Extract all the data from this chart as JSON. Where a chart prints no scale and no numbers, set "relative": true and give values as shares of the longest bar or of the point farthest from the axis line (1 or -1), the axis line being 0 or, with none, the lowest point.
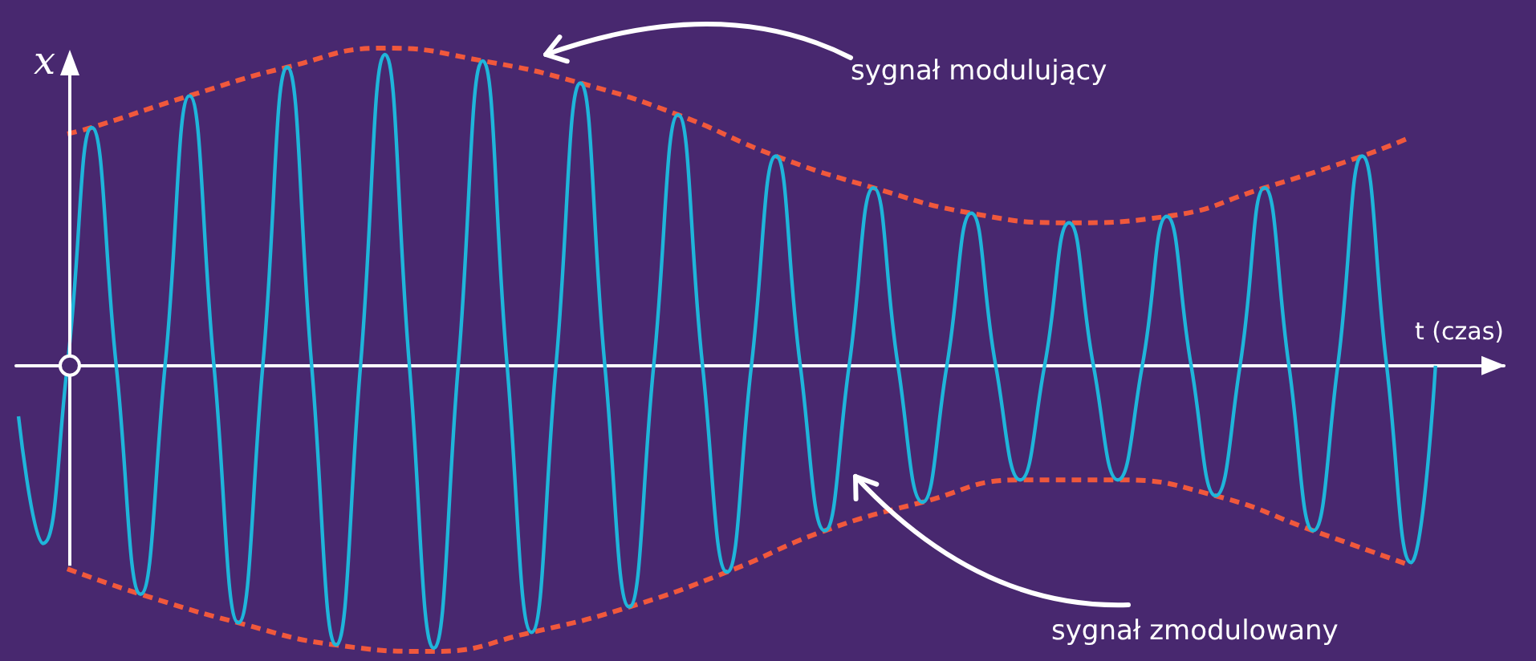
{
  "chart_data": {
    "type": "line",
    "relative": true,
    "xlabel": "t (czas)",
    "ylabel": "x",
    "marker": "none",
    "categories": [
      null,
      null,
      null,
      null,
      null,
      null,
      null,
      null,
      null,
      null,
      null,
      null,
      null,
      null,
      null,
      null,
      null,
      null,
      null,
      null,
      null,
      null,
      null,
      null,
      null,
      null,
      null,
      null,
      null,
      null,
      null,
      null,
      null,
      null,
      null,
      null,
      null,
      null,
      null,
      null,
      null,
      null,
      null,
      null,
      null,
      null,
      null,
      null,
      null,
      null,
      null,
      null,
      null,
      null,
      null,
      null,
      null,
      null,
      null
    ],
    "series": [
      {
        "color": "#1fb5da",
        "line_style": "solid",
        "values": [
          -0.16,
          -0.56,
          0,
          0.75,
          0,
          -0.72,
          0,
          0.85,
          0,
          -0.81,
          0,
          0.94,
          0,
          -0.88,
          0,
          0.98,
          0,
          -0.89,
          0,
          0.96,
          0,
          -0.84,
          0,
          0.89,
          0,
          -0.76,
          0,
          0.79,
          0,
          -0.65,
          0,
          0.66,
          0,
          -0.52,
          0,
          0.56,
          0,
          -0.43,
          0,
          0.48,
          0,
          -0.36,
          0,
          0.45,
          0,
          -0.36,
          0,
          0.47,
          0,
          -0.41,
          0,
          0.56,
          0,
          -0.52,
          0,
          0.66,
          0,
          -0.62,
          0
        ]
      },
      {
        "color": "#f0583c",
        "line_style": "dashed",
        "values": [
          null,
          null,
          0.73,
          0.75,
          null,
          null,
          null,
          0.85,
          null,
          null,
          null,
          0.94,
          null,
          null,
          null,
          1,
          null,
          null,
          null,
          0.96,
          null,
          null,
          null,
          0.89,
          null,
          null,
          null,
          0.79,
          null,
          null,
          null,
          0.66,
          null,
          null,
          null,
          0.56,
          null,
          null,
          null,
          0.48,
          null,
          null,
          null,
          0.45,
          null,
          null,
          null,
          0.47,
          null,
          null,
          null,
          0.56,
          null,
          null,
          null,
          0.66,
          null,
          0.72,
          null
        ]
      },
      {
        "color": "#f0583c",
        "line_style": "dashed",
        "values": [
          null,
          null,
          -0.64,
          null,
          null,
          -0.72,
          null,
          null,
          null,
          -0.81,
          null,
          null,
          null,
          -0.88,
          null,
          null,
          null,
          -0.9,
          null,
          null,
          null,
          -0.84,
          null,
          null,
          null,
          -0.76,
          null,
          null,
          null,
          -0.65,
          null,
          null,
          null,
          -0.52,
          null,
          null,
          null,
          -0.43,
          null,
          null,
          null,
          -0.36,
          null,
          null,
          null,
          -0.36,
          null,
          null,
          null,
          -0.41,
          null,
          null,
          null,
          -0.52,
          null,
          null,
          null,
          -0.63,
          null
        ]
      }
    ],
    "annotations": [
      "sygnał modulujący",
      "sygnał zmodulowany"
    ]
  }
}
